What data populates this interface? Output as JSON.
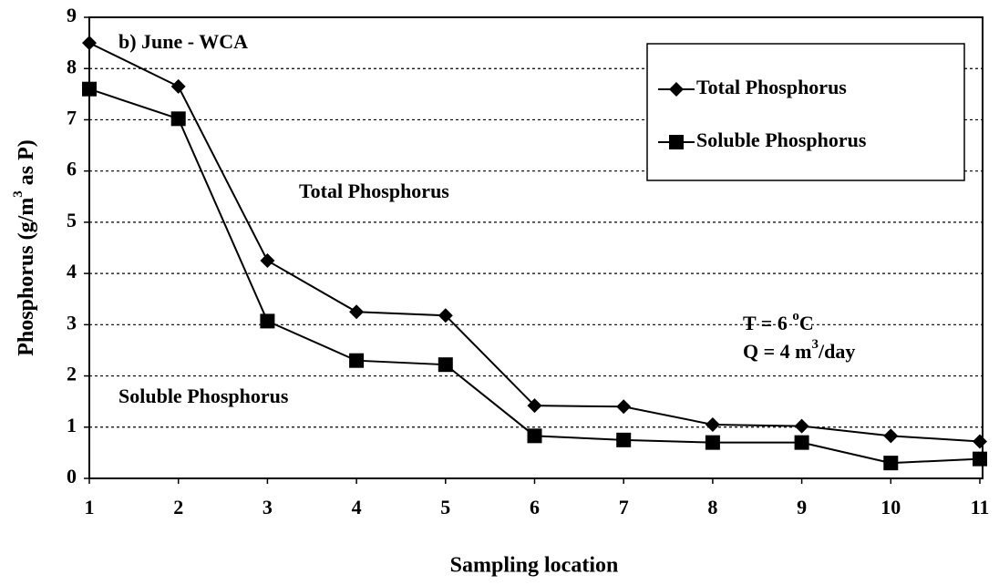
{
  "chart_data": {
    "type": "line",
    "x_label": "Sampling location",
    "y_label": [
      "Phosphorus (g/m",
      "3",
      " as P)"
    ],
    "x": [
      1,
      2,
      3,
      4,
      5,
      6,
      7,
      8,
      9,
      10,
      11
    ],
    "series": [
      {
        "name": "Total Phosphorus",
        "color": "#000000",
        "marker": "diamond",
        "values": [
          8.5,
          7.65,
          4.25,
          3.25,
          3.18,
          1.42,
          1.4,
          1.05,
          1.02,
          0.83,
          0.72
        ]
      },
      {
        "name": "Soluble Phosphorus",
        "color": "#000000",
        "marker": "square",
        "values": [
          7.6,
          7.02,
          3.07,
          2.3,
          2.22,
          0.83,
          0.75,
          0.7,
          0.7,
          0.3,
          0.38
        ]
      }
    ],
    "xlim": [
      1,
      11
    ],
    "xticks": [
      1,
      2,
      3,
      4,
      5,
      6,
      7,
      8,
      9,
      10,
      11
    ],
    "ylim": [
      0,
      9
    ],
    "yticks": [
      0,
      1,
      2,
      3,
      4,
      5,
      6,
      7,
      8,
      9
    ],
    "grid": true,
    "legend": "upper right",
    "annotations": [
      [
        "b) June - WCA"
      ],
      [
        "Total Phosphorus"
      ],
      [
        "Soluble Phosphorus"
      ],
      [
        "T = 6 ",
        "o",
        "C"
      ],
      [
        "Q = 4 m",
        "3",
        "/day"
      ]
    ]
  }
}
